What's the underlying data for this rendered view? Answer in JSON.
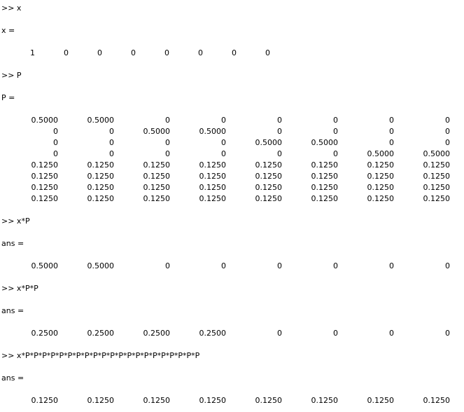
{
  "blocks": [
    {
      "command": ">> x",
      "name": "x =",
      "rows": [
        [
          "1",
          "0",
          "0",
          "0",
          "0",
          "0",
          "0",
          "0"
        ]
      ]
    },
    {
      "command": ">> P",
      "name": "P =",
      "rows": [
        [
          "0.5000",
          "0.5000",
          "0",
          "0",
          "0",
          "0",
          "0",
          "0"
        ],
        [
          "0",
          "0",
          "0.5000",
          "0.5000",
          "0",
          "0",
          "0",
          "0"
        ],
        [
          "0",
          "0",
          "0",
          "0",
          "0.5000",
          "0.5000",
          "0",
          "0"
        ],
        [
          "0",
          "0",
          "0",
          "0",
          "0",
          "0",
          "0.5000",
          "0.5000"
        ],
        [
          "0.1250",
          "0.1250",
          "0.1250",
          "0.1250",
          "0.1250",
          "0.1250",
          "0.1250",
          "0.1250"
        ],
        [
          "0.1250",
          "0.1250",
          "0.1250",
          "0.1250",
          "0.1250",
          "0.1250",
          "0.1250",
          "0.1250"
        ],
        [
          "0.1250",
          "0.1250",
          "0.1250",
          "0.1250",
          "0.1250",
          "0.1250",
          "0.1250",
          "0.1250"
        ],
        [
          "0.1250",
          "0.1250",
          "0.1250",
          "0.1250",
          "0.1250",
          "0.1250",
          "0.1250",
          "0.1250"
        ]
      ]
    },
    {
      "command": ">> x*P",
      "name": "ans =",
      "rows": [
        [
          "0.5000",
          "0.5000",
          "0",
          "0",
          "0",
          "0",
          "0",
          "0"
        ]
      ]
    },
    {
      "command": ">> x*P*P",
      "name": "ans =",
      "rows": [
        [
          "0.2500",
          "0.2500",
          "0.2500",
          "0.2500",
          "0",
          "0",
          "0",
          "0"
        ]
      ]
    },
    {
      "command": ">> x*P*P*P*P*P*P*P*P*P*P*P*P*P*P*P*P*P*P*P*P*P",
      "name": "ans =",
      "rows": [
        [
          "0.1250",
          "0.1250",
          "0.1250",
          "0.1250",
          "0.1250",
          "0.1250",
          "0.1250",
          "0.1250"
        ]
      ]
    }
  ]
}
